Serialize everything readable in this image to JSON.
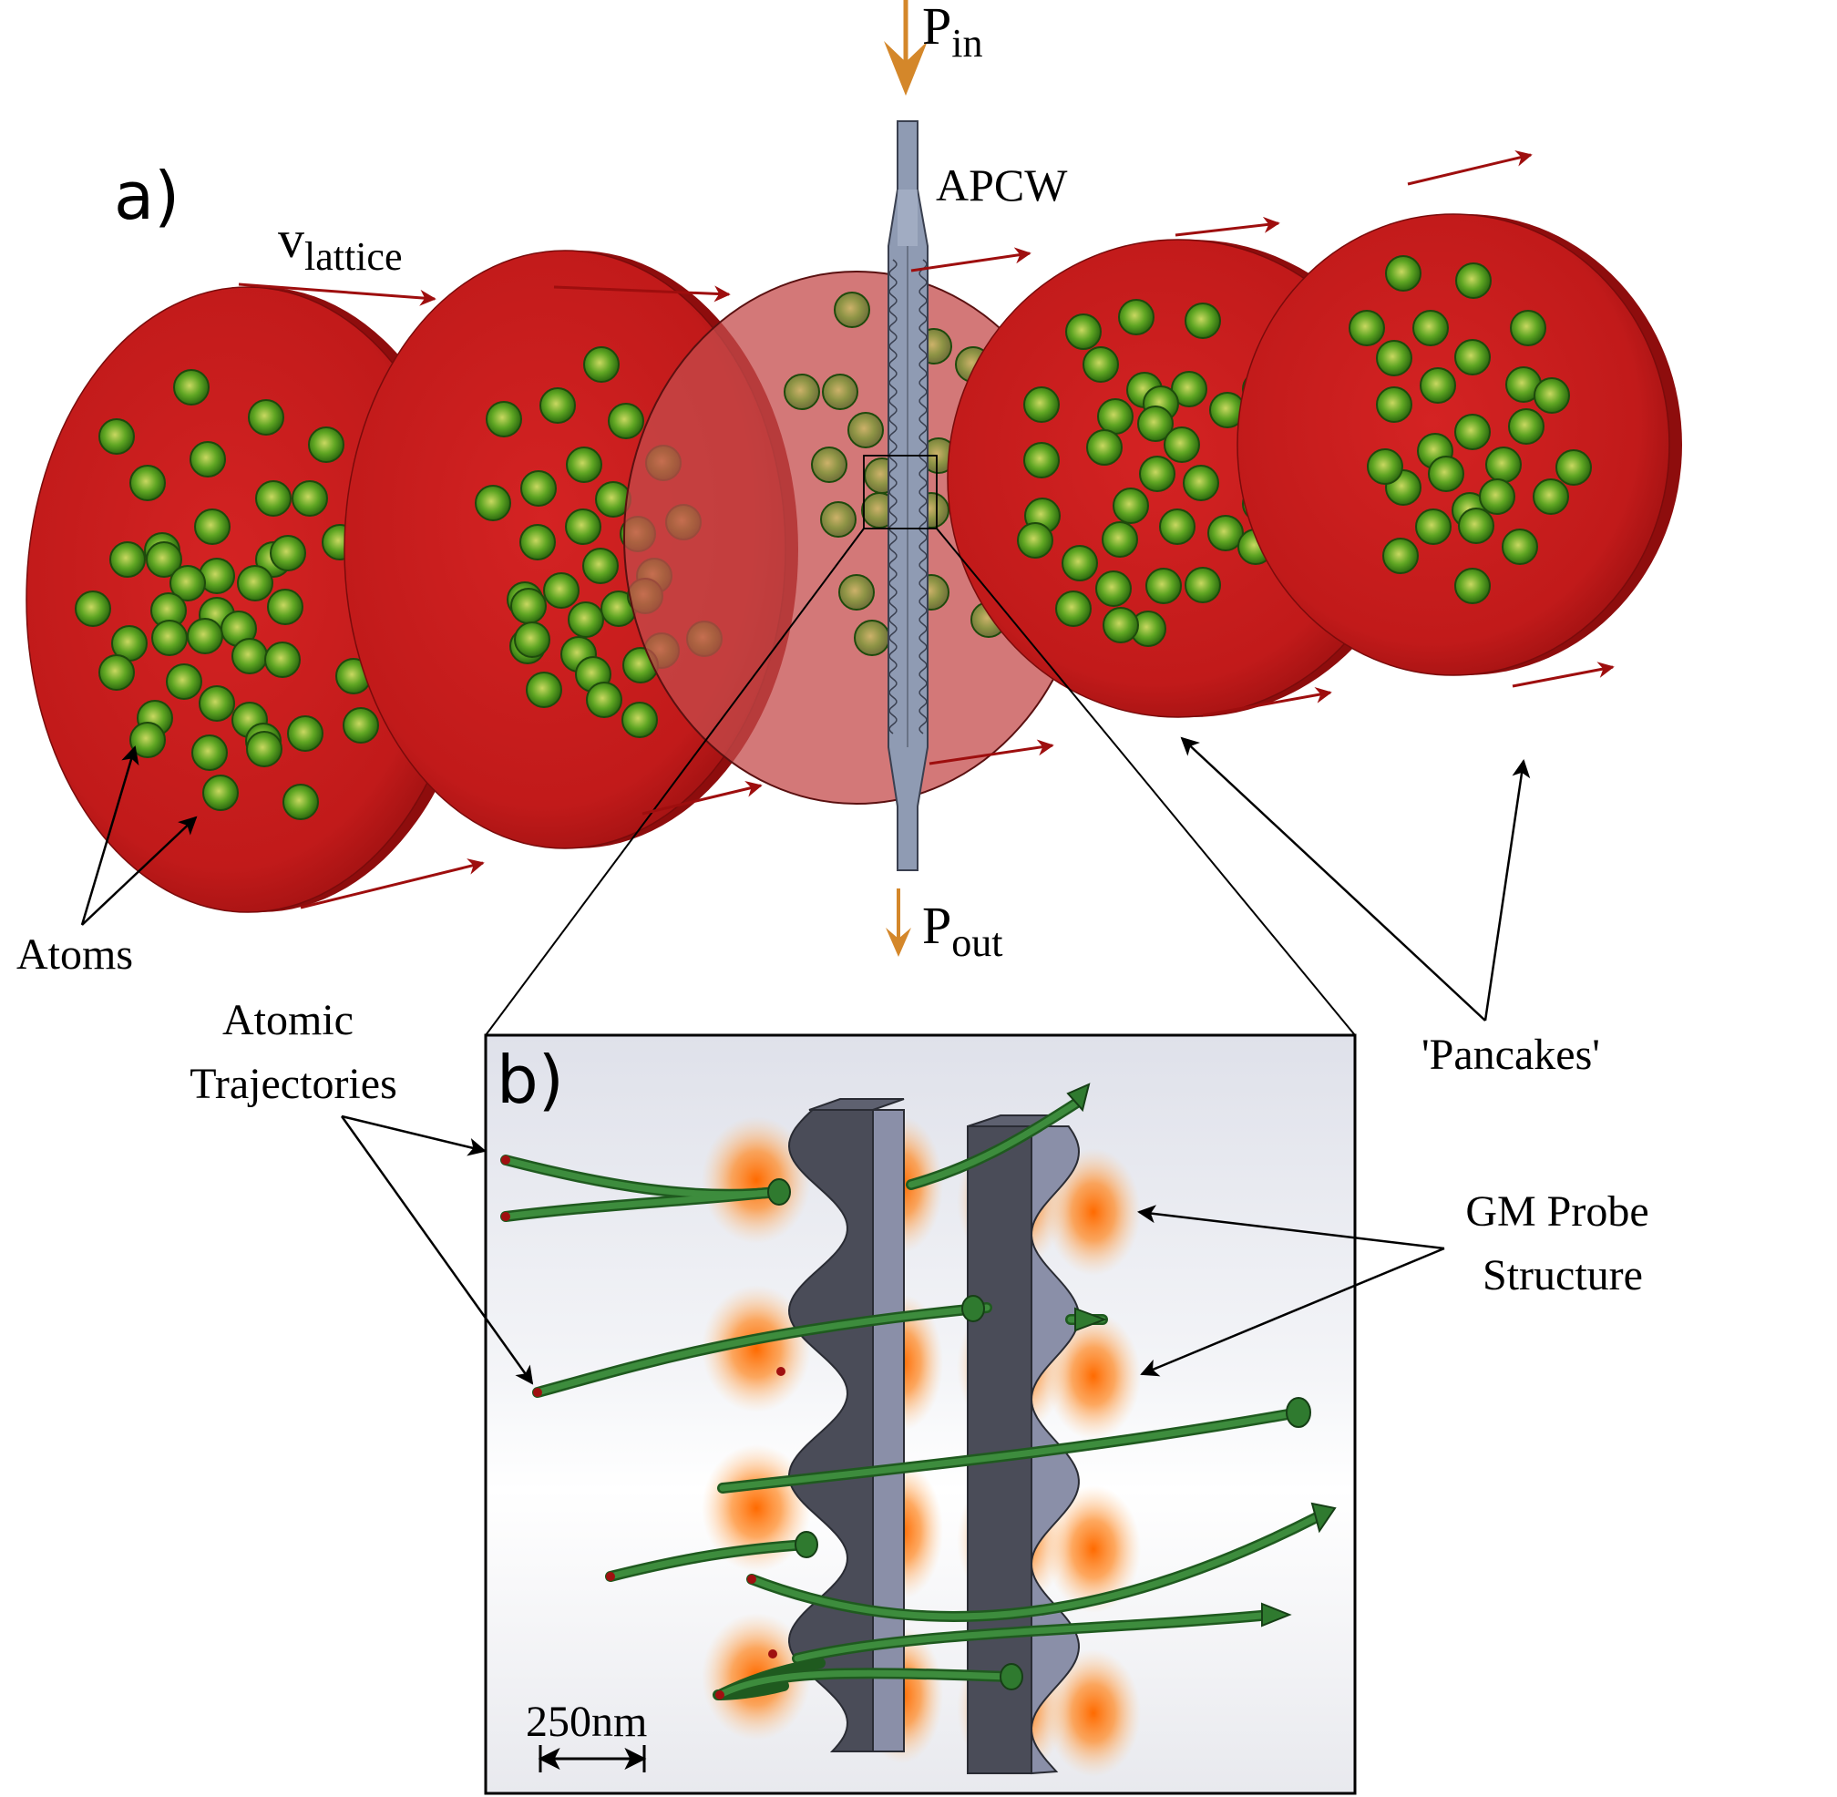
{
  "panel_a": {
    "label": "a)",
    "v_lattice": {
      "base": "v",
      "sub": "lattice"
    },
    "p_in": {
      "base": "P",
      "sub": "in"
    },
    "p_out": {
      "base": "P",
      "sub": "out"
    },
    "apcw": "APCW",
    "atoms": "Atoms",
    "pancakes": "'Pancakes'"
  },
  "panel_b": {
    "label": "b)",
    "atomic_trajectories": [
      "Atomic",
      "Trajectories"
    ],
    "gm_probe": [
      "GM Probe",
      "Structure"
    ],
    "scale_bar": "250nm"
  },
  "colors": {
    "pancake_red": "#c61a1a",
    "pancake_dark": "#8e0d0d",
    "atom_green": "#3c9a1a",
    "velocity_arrow": "#9e0e0e",
    "power_arrow": "#d4872a",
    "waveguide": "#4a4c58",
    "evanescent_glow": "#ff7a00",
    "trajectory_green": "#2f7a2f"
  },
  "icons": {
    "pancake": "pancake-disk-icon",
    "atom": "atom-sphere-icon",
    "waveguide": "apcw-waveguide-icon"
  }
}
